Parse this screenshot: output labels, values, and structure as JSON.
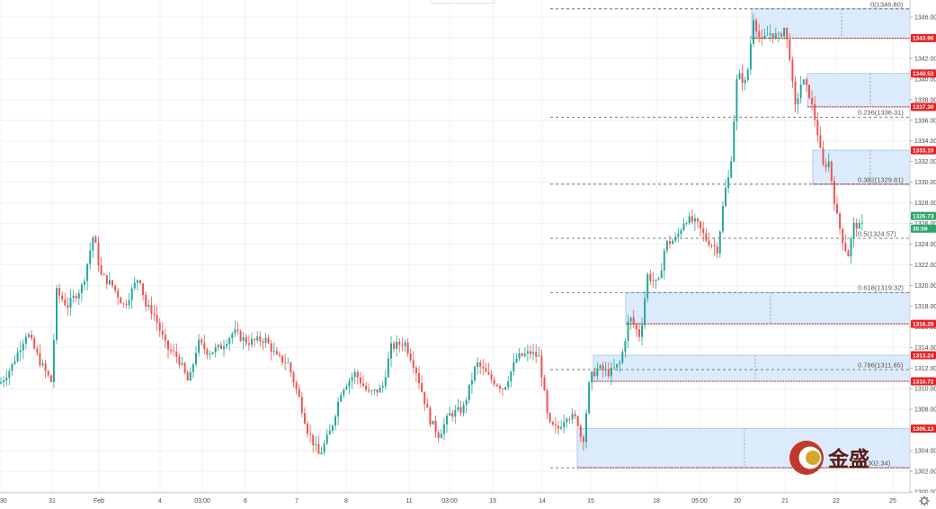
{
  "chart_data": {
    "type": "candlestick",
    "colors": {
      "up": "#26a69a",
      "down": "#ef5350",
      "zone_fill": "#dcebfb",
      "zone_border": "#9cc3ef",
      "red_tag": "#e52222",
      "green_tag": "#2fa36b"
    },
    "y_range": [
      1300,
      1347.5
    ],
    "y_ticks": [
      1300,
      1302,
      1304,
      1306,
      1308,
      1310,
      1312,
      1314,
      1316,
      1318,
      1320,
      1322,
      1324,
      1326,
      1328,
      1330,
      1332,
      1334,
      1336,
      1338,
      1340,
      1342,
      1344,
      1346
    ],
    "y_tick_labels": [
      "1300.00",
      "1302.00",
      "1304.00",
      "1306.00",
      "1308.00",
      "1310.00",
      "1312.00",
      "1314.00",
      "1316.00",
      "1318.00",
      "1320.00",
      "1322.00",
      "1324.00",
      "1326.00",
      "1328.00",
      "1330.00",
      "1332.00",
      "1334.00",
      "1336.00",
      "1338.00",
      "1340.00",
      "1342.00",
      "1344.00",
      "1346.00"
    ],
    "x_ticks": [
      "30",
      "31",
      "Feb",
      "4",
      "03:00",
      "6",
      "7",
      "8",
      "11",
      "03:00",
      "13",
      "14",
      "15",
      "18",
      "05:00",
      "20",
      "21",
      "22",
      "25"
    ],
    "fib_levels": [
      {
        "label": "0(1346.80)",
        "value": 1346.8
      },
      {
        "label": "0.236(1336.31)",
        "value": 1336.31
      },
      {
        "label": "0.382(1329.81)",
        "value": 1329.81
      },
      {
        "label": "0.5(1324.57)",
        "value": 1324.57
      },
      {
        "label": "0.618(1319.32)",
        "value": 1319.32
      },
      {
        "label": "0.786(1311.85)",
        "value": 1311.85
      },
      {
        "label": "1(1302.34)",
        "value": 1302.34
      }
    ],
    "zones": [
      {
        "top": 1346.8,
        "bottom": 1343.96
      },
      {
        "top": 1340.53,
        "bottom": 1337.3
      },
      {
        "top": 1333.1,
        "bottom": 1329.81
      },
      {
        "top": 1319.32,
        "bottom": 1316.28
      },
      {
        "top": 1313.24,
        "bottom": 1310.72
      },
      {
        "top": 1306.13,
        "bottom": 1302.34
      }
    ],
    "price_tags": [
      {
        "label": "1343.96",
        "value": 1343.96,
        "color": "red"
      },
      {
        "label": "1340.53",
        "value": 1340.53,
        "color": "red"
      },
      {
        "label": "1337.30",
        "value": 1337.3,
        "color": "red"
      },
      {
        "label": "1333.10",
        "value": 1333.1,
        "color": "red"
      },
      {
        "label": "1326.73",
        "value": 1326.73,
        "color": "green"
      },
      {
        "label": "35:59",
        "value": 1325.5,
        "color": "green"
      },
      {
        "label": "1316.28",
        "value": 1316.28,
        "color": "red"
      },
      {
        "label": "1313.24",
        "value": 1313.24,
        "color": "red"
      },
      {
        "label": "1310.72",
        "value": 1310.72,
        "color": "red"
      },
      {
        "label": "1306.13",
        "value": 1306.13,
        "color": "red"
      }
    ],
    "price_path": [
      [
        0,
        1310.5
      ],
      [
        12,
        1312
      ],
      [
        30,
        1315.5
      ],
      [
        45,
        1312.5
      ],
      [
        58,
        1310.5
      ],
      [
        62,
        1319.5
      ],
      [
        75,
        1318
      ],
      [
        92,
        1320
      ],
      [
        104,
        1325
      ],
      [
        112,
        1321
      ],
      [
        125,
        1320
      ],
      [
        138,
        1318
      ],
      [
        155,
        1321
      ],
      [
        162,
        1318
      ],
      [
        170,
        1317.5
      ],
      [
        185,
        1314
      ],
      [
        198,
        1313
      ],
      [
        210,
        1310.5
      ],
      [
        220,
        1314.5
      ],
      [
        232,
        1313.5
      ],
      [
        245,
        1314
      ],
      [
        260,
        1315.5
      ],
      [
        275,
        1314.5
      ],
      [
        295,
        1314.8
      ],
      [
        308,
        1313
      ],
      [
        320,
        1312.5
      ],
      [
        333,
        1309
      ],
      [
        342,
        1306
      ],
      [
        355,
        1303.5
      ],
      [
        368,
        1306
      ],
      [
        380,
        1310
      ],
      [
        395,
        1311.5
      ],
      [
        410,
        1309.5
      ],
      [
        425,
        1310
      ],
      [
        435,
        1314
      ],
      [
        450,
        1314.5
      ],
      [
        462,
        1312
      ],
      [
        478,
        1307
      ],
      [
        488,
        1305.5
      ],
      [
        500,
        1307.5
      ],
      [
        515,
        1308
      ],
      [
        530,
        1312.5
      ],
      [
        545,
        1311
      ],
      [
        560,
        1310
      ],
      [
        575,
        1313
      ],
      [
        590,
        1313.5
      ],
      [
        600,
        1313
      ],
      [
        610,
        1306.5
      ],
      [
        620,
        1306
      ],
      [
        630,
        1307.5
      ],
      [
        642,
        1307
      ],
      [
        648,
        1304.5
      ],
      [
        656,
        1311
      ],
      [
        665,
        1312
      ],
      [
        678,
        1311.5
      ],
      [
        690,
        1312.5
      ],
      [
        700,
        1317
      ],
      [
        712,
        1315
      ],
      [
        720,
        1321
      ],
      [
        732,
        1320
      ],
      [
        740,
        1324
      ],
      [
        752,
        1324.5
      ],
      [
        762,
        1326.5
      ],
      [
        775,
        1326
      ],
      [
        785,
        1324.5
      ],
      [
        798,
        1323.5
      ],
      [
        806,
        1329
      ],
      [
        812,
        1331
      ],
      [
        820,
        1340.5
      ],
      [
        830,
        1339.5
      ],
      [
        838,
        1346
      ],
      [
        846,
        1343.5
      ],
      [
        856,
        1344.5
      ],
      [
        866,
        1344
      ],
      [
        872,
        1345
      ],
      [
        878,
        1342.5
      ],
      [
        884,
        1337
      ],
      [
        892,
        1340
      ],
      [
        900,
        1338.5
      ],
      [
        908,
        1335.5
      ],
      [
        915,
        1331.5
      ],
      [
        922,
        1332
      ],
      [
        930,
        1327
      ],
      [
        937,
        1324.5
      ],
      [
        943,
        1322.8
      ],
      [
        950,
        1326
      ],
      [
        958,
        1325.5
      ],
      [
        962,
        1326.7
      ]
    ]
  },
  "logo": {
    "text": "金盛"
  },
  "settings_icon": "gear-icon"
}
